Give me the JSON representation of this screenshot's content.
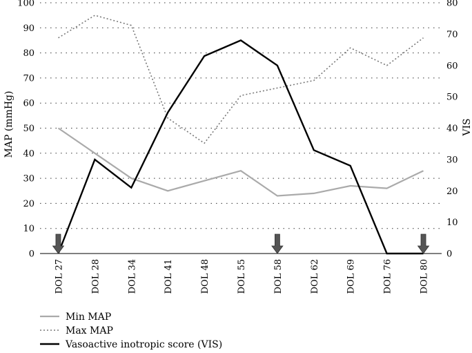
{
  "chart_data": {
    "type": "line",
    "title": "",
    "categories": [
      "DOL 27",
      "DOL 28",
      "DOL 34",
      "DOL 41",
      "DOL 48",
      "DOL 55",
      "DOL 58",
      "DOL 62",
      "DOL 69",
      "DOL 76",
      "DOL 80"
    ],
    "ylabel_left": "MAP (mmHg)",
    "ylabel_right": "VIS",
    "ylim_left": [
      0,
      100
    ],
    "ylim_right": [
      0,
      80
    ],
    "yticks_left": [
      0,
      10,
      20,
      30,
      40,
      50,
      60,
      70,
      80,
      90,
      100
    ],
    "yticks_right": [
      0,
      10,
      20,
      30,
      40,
      50,
      60,
      70,
      80
    ],
    "grid": "horizontal dotted",
    "legend_position": "bottom-left",
    "series": [
      {
        "name": "Min MAP",
        "axis": "left",
        "color": "#aaaaaa",
        "style": "solid",
        "values": [
          50,
          40,
          30,
          25,
          29,
          33,
          23,
          24,
          27,
          26,
          33
        ]
      },
      {
        "name": "Max MAP",
        "axis": "left",
        "color": "#777777",
        "style": "dotted",
        "values": [
          86,
          95,
          91,
          54,
          44,
          63,
          66,
          69,
          82,
          75,
          86
        ]
      },
      {
        "name": "Vasoactive inotropic score (VIS)",
        "axis": "right",
        "color": "#000000",
        "style": "solid",
        "values": [
          0,
          30,
          21,
          45,
          63,
          68,
          60,
          33,
          28,
          0,
          0
        ]
      }
    ],
    "arrow_markers": [
      "DOL 27",
      "DOL 58",
      "DOL 80"
    ],
    "arrow_color": "#555555"
  }
}
